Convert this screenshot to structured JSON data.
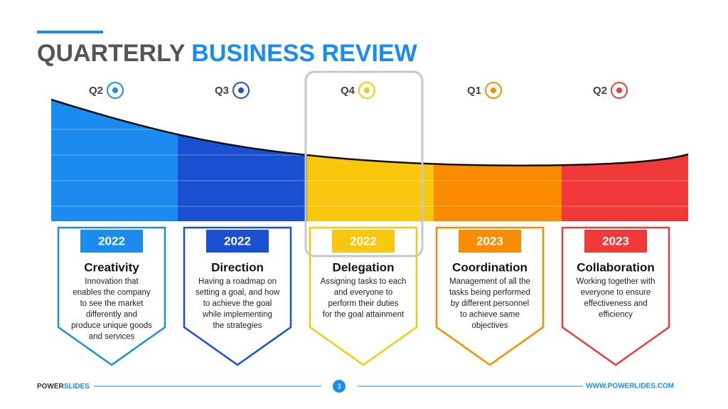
{
  "header": {
    "title_part1": "QUARTERLY",
    "title_part2": "BUSINESS REVIEW"
  },
  "columns": [
    {
      "quarter": "Q2",
      "year": "2022",
      "heading": "Creativity",
      "description": [
        "Innovation that",
        "enables the company",
        "to see the market",
        "differently and",
        "produce unique goods",
        "and services"
      ]
    },
    {
      "quarter": "Q3",
      "year": "2022",
      "heading": "Direction",
      "description": [
        "Having a roadmap on",
        "setting a goal, and how",
        "to achieve the goal",
        "while implementing",
        "the strategies"
      ]
    },
    {
      "quarter": "Q4",
      "year": "2022",
      "heading": "Delegation",
      "description": [
        "Assigning tasks to each",
        "and everyone to",
        "perform their duties",
        "for the goal attainment"
      ]
    },
    {
      "quarter": "Q1",
      "year": "2023",
      "heading": "Coordination",
      "description": [
        "Management of all the",
        "tasks being performed",
        "by different personnel",
        "to achieve same",
        "objectives"
      ]
    },
    {
      "quarter": "Q2",
      "year": "2023",
      "heading": "Collaboration",
      "description": [
        "Working together with",
        "everyone to ensure",
        "effectiveness and",
        "efficiency"
      ]
    }
  ],
  "footer": {
    "brand_part1": "POWER",
    "brand_part2": "SLIDES",
    "page_number": "3",
    "url": "WWW.POWERLIDES.COM"
  }
}
